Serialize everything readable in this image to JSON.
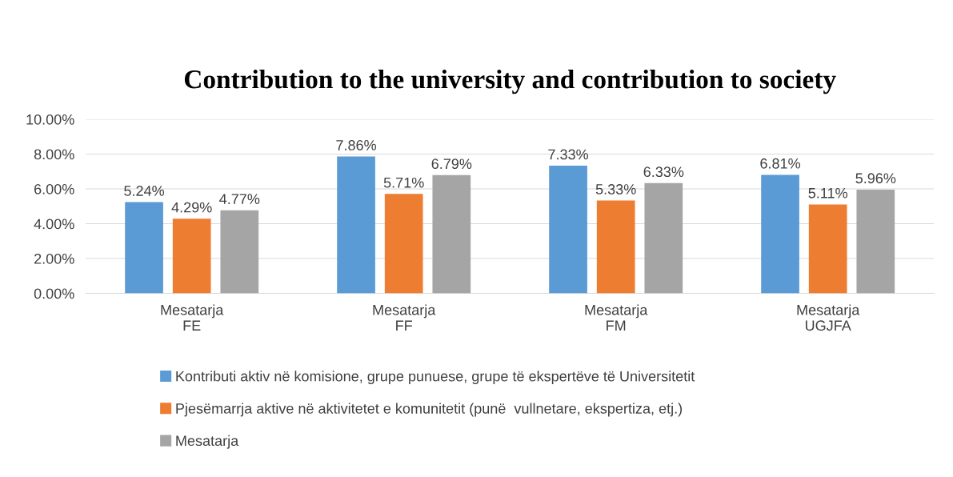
{
  "chart_data": {
    "type": "bar",
    "title": "Contribution to the university and contribution to society",
    "categories": [
      "Mesatarja\nFE",
      "Mesatarja\nFF",
      "Mesatarja\nFM",
      "Mesatarja\nUGJFA"
    ],
    "series": [
      {
        "name": "Kontributi aktiv në komisione, grupe punuese, grupe të ekspertëve të Universitetit",
        "color": "#5b9bd5",
        "values": [
          5.24,
          7.86,
          7.33,
          6.81
        ],
        "value_labels": [
          "5.24%",
          "7.86%",
          "7.33%",
          "6.81%"
        ]
      },
      {
        "name": "Pjesëmarrja aktive në aktivitetet e komunitetit (punë  vullnetare, ekspertiza, etj.)",
        "color": "#ed7d31",
        "values": [
          4.29,
          5.71,
          5.33,
          5.11
        ],
        "value_labels": [
          "4.29%",
          "5.71%",
          "5.33%",
          "5.11%"
        ]
      },
      {
        "name": "Mesatarja",
        "color": "#a5a5a5",
        "values": [
          4.77,
          6.79,
          6.33,
          5.96
        ],
        "value_labels": [
          "4.77%",
          "6.79%",
          "6.33%",
          "5.96%"
        ]
      }
    ],
    "ylim": [
      0,
      10
    ],
    "yticks": [
      {
        "value": 0,
        "label": "0.00%"
      },
      {
        "value": 2,
        "label": "2.00%"
      },
      {
        "value": 4,
        "label": "4.00%"
      },
      {
        "value": 6,
        "label": "6.00%"
      },
      {
        "value": 8,
        "label": "8.00%"
      },
      {
        "value": 10,
        "label": "10.00%"
      }
    ],
    "grid": "y",
    "legend": "bottom"
  }
}
